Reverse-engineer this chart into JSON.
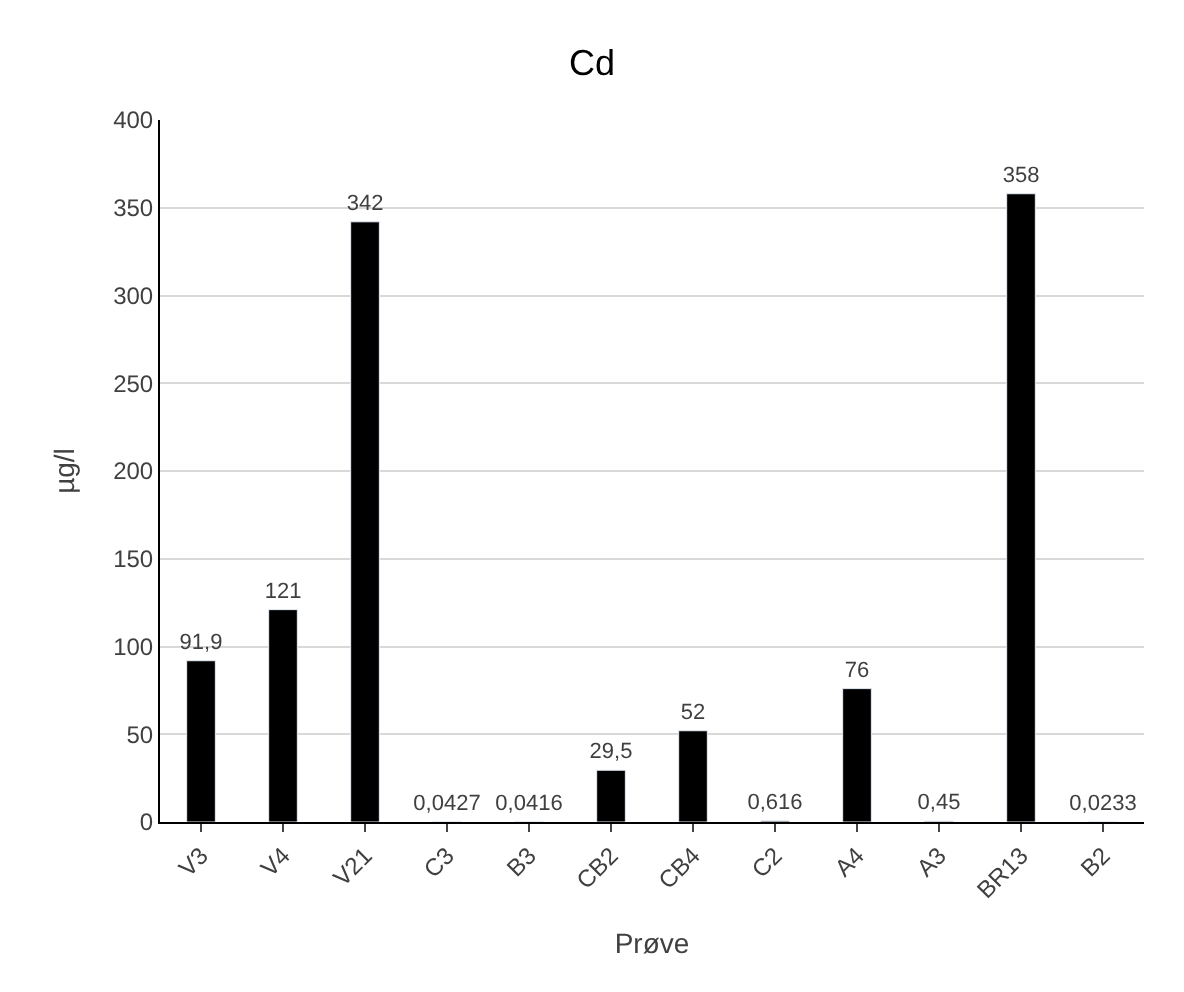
{
  "chart_data": {
    "type": "bar",
    "title": "Cd",
    "xlabel": "Prøve",
    "ylabel": "µg/l",
    "categories": [
      "V3",
      "V4",
      "V21",
      "C3",
      "B3",
      "CB2",
      "CB4",
      "C2",
      "A4",
      "A3",
      "BR13",
      "B2"
    ],
    "values": [
      91.9,
      121,
      342,
      0.0427,
      0.0416,
      29.5,
      52,
      0.616,
      76,
      0.45,
      358,
      0.0233
    ],
    "value_labels": [
      "91,9",
      "121",
      "342",
      "0,0427",
      "0,0416",
      "29,5",
      "52",
      "0,616",
      "76",
      "0,45",
      "358",
      "0,0233"
    ],
    "color": "#000000",
    "ylim": [
      0,
      400
    ],
    "yticks": [
      0,
      50,
      100,
      150,
      200,
      250,
      300,
      350,
      400
    ],
    "grid": "y",
    "legend": false
  }
}
